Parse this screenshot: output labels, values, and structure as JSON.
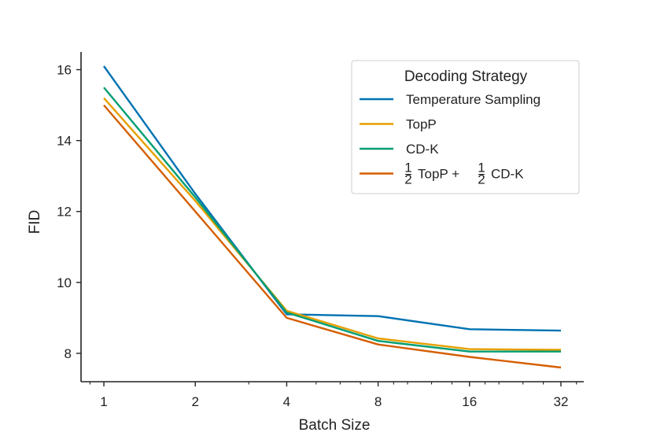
{
  "chart_data": {
    "type": "line",
    "title": "",
    "xlabel": "Batch Size",
    "ylabel": "FID",
    "x_scale": "log2",
    "x": [
      1,
      2,
      4,
      8,
      16,
      32
    ],
    "x_tick_labels": [
      "1",
      "2",
      "4",
      "8",
      "16",
      "32"
    ],
    "y_ticks": [
      8,
      10,
      12,
      14,
      16
    ],
    "y_tick_labels": [
      "8",
      "10",
      "12",
      "14",
      "16"
    ],
    "ylim": [
      7.2,
      16.5
    ],
    "xlim_log2": [
      -0.25,
      5.25
    ],
    "grid": false,
    "legend": {
      "title": "Decoding Strategy",
      "placement": "top-right"
    },
    "series": [
      {
        "name": "Temperature Sampling",
        "color": "#0072b2",
        "values": [
          16.1,
          12.5,
          9.1,
          9.05,
          8.68,
          8.64
        ]
      },
      {
        "name": "TopP",
        "color": "#e69f00",
        "values": [
          15.2,
          12.3,
          9.2,
          8.42,
          8.12,
          8.1
        ]
      },
      {
        "name": "CD-K",
        "color": "#009e73",
        "values": [
          15.5,
          12.4,
          9.15,
          8.35,
          8.05,
          8.05
        ]
      },
      {
        "name": "½ TopP + ½ CD-K",
        "label_parts": {
          "num": "1",
          "den": "2",
          "a": "TopP +",
          "b": "CD-K"
        },
        "color": "#d55e00",
        "values": [
          15.0,
          12.0,
          9.0,
          8.25,
          7.9,
          7.6
        ]
      }
    ]
  }
}
